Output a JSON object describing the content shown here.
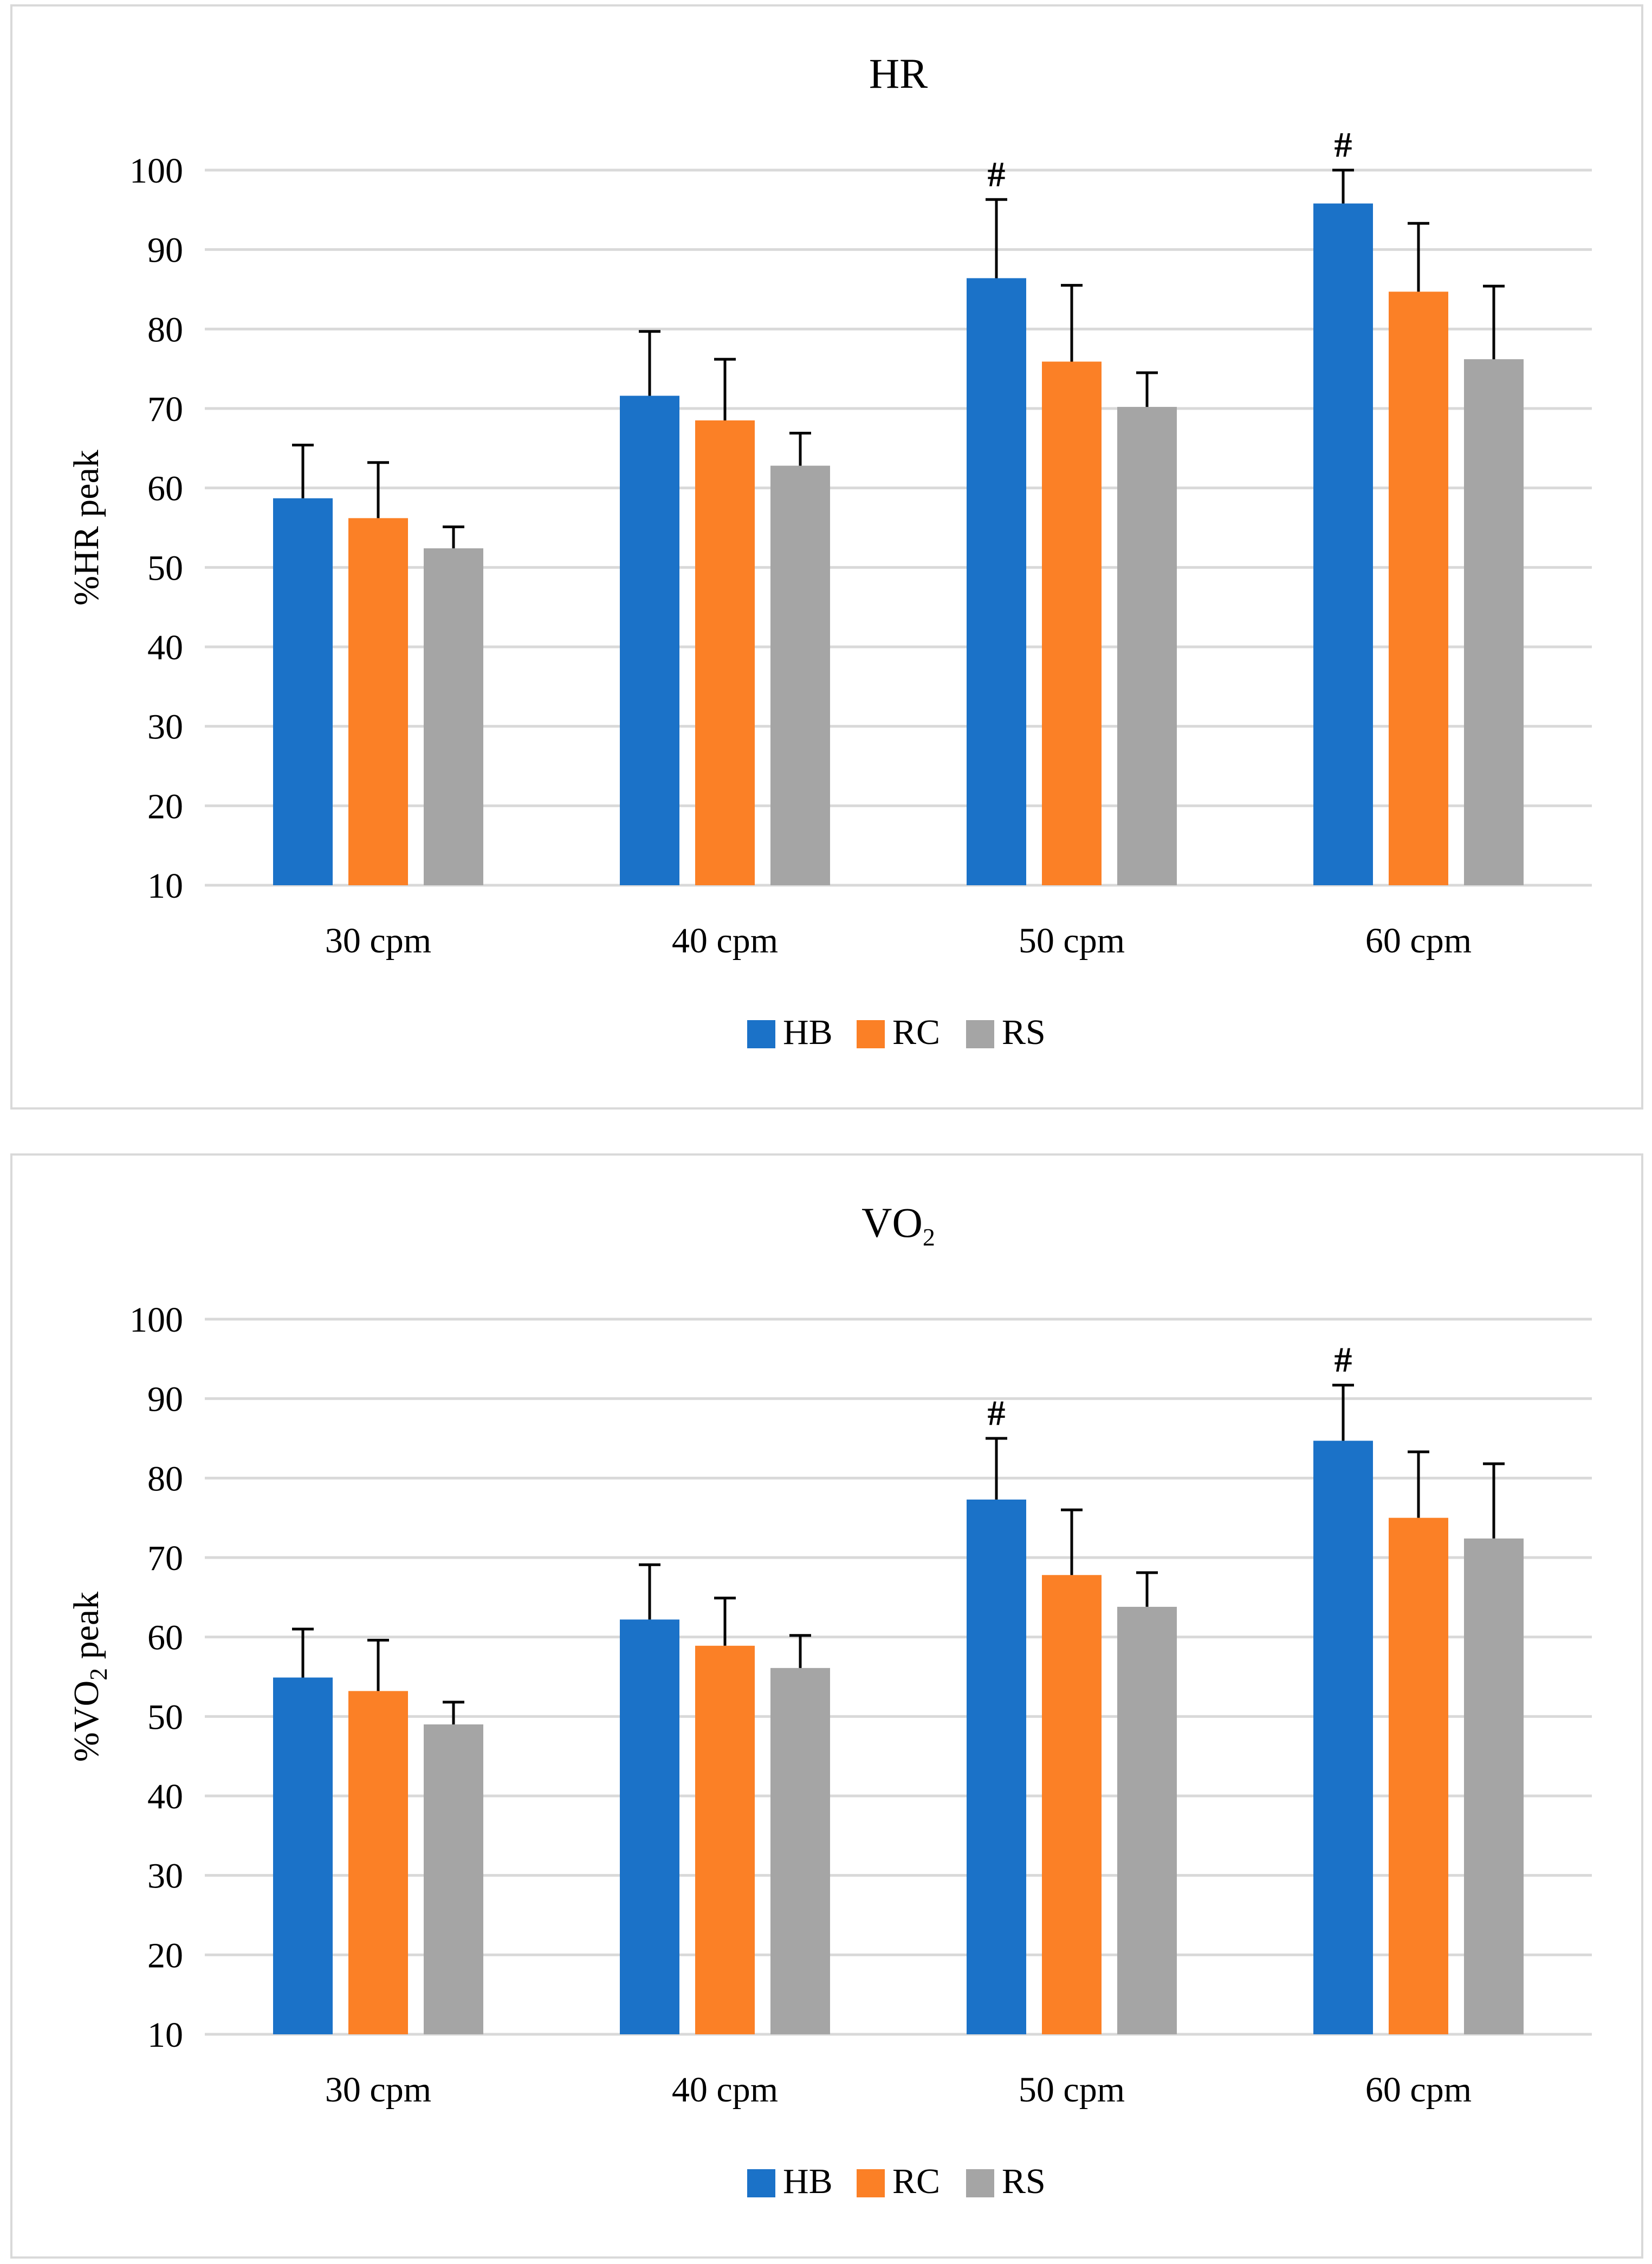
{
  "chart_data": [
    {
      "type": "bar",
      "title": "HR",
      "title_sub": "",
      "ylabel_pre": "%HR peak",
      "ylabel_sub": "",
      "ylabel_post": "",
      "ylim": [
        10,
        100
      ],
      "yticks": [
        "10",
        "20",
        "30",
        "40",
        "50",
        "60",
        "70",
        "80",
        "90",
        "100"
      ],
      "grid": true,
      "legend_position": "bottom",
      "categories": [
        "30 cpm",
        "40 cpm",
        "50 cpm",
        "60 cpm"
      ],
      "series": [
        {
          "name": "HB",
          "color": "#1b72c8",
          "values": [
            58.7,
            71.6,
            86.4,
            95.8
          ],
          "error": [
            6.7,
            8.1,
            9.9,
            4.2
          ]
        },
        {
          "name": "RC",
          "color": "#fb8026",
          "values": [
            56.2,
            68.5,
            75.9,
            84.7
          ],
          "error": [
            7.0,
            7.7,
            9.6,
            8.6
          ]
        },
        {
          "name": "RS",
          "color": "#a5a5a5",
          "values": [
            52.4,
            62.8,
            70.2,
            76.2
          ],
          "error": [
            2.7,
            4.1,
            4.3,
            9.2
          ]
        }
      ],
      "significance": [
        {
          "category": "50 cpm",
          "series": "HB",
          "mark": "#"
        },
        {
          "category": "60 cpm",
          "series": "HB",
          "mark": "#"
        }
      ]
    },
    {
      "type": "bar",
      "title": "VO",
      "title_sub": "2",
      "ylabel_pre": "%VO",
      "ylabel_sub": "2",
      "ylabel_post": " peak",
      "ylim": [
        10,
        100
      ],
      "yticks": [
        "10",
        "20",
        "30",
        "40",
        "50",
        "60",
        "70",
        "80",
        "90",
        "100"
      ],
      "grid": true,
      "legend_position": "bottom",
      "categories": [
        "30 cpm",
        "40 cpm",
        "50 cpm",
        "60 cpm"
      ],
      "series": [
        {
          "name": "HB",
          "color": "#1b72c8",
          "values": [
            54.9,
            62.2,
            77.3,
            84.7
          ],
          "error": [
            6.1,
            6.9,
            7.7,
            7.0
          ]
        },
        {
          "name": "RC",
          "color": "#fb8026",
          "values": [
            53.2,
            58.9,
            67.8,
            75.0
          ],
          "error": [
            6.4,
            6.0,
            8.2,
            8.3
          ]
        },
        {
          "name": "RS",
          "color": "#a5a5a5",
          "values": [
            49.0,
            56.1,
            63.8,
            72.4
          ],
          "error": [
            2.8,
            4.1,
            4.3,
            9.4
          ]
        }
      ],
      "significance": [
        {
          "category": "50 cpm",
          "series": "HB",
          "mark": "#"
        },
        {
          "category": "60 cpm",
          "series": "HB",
          "mark": "#"
        }
      ]
    }
  ]
}
